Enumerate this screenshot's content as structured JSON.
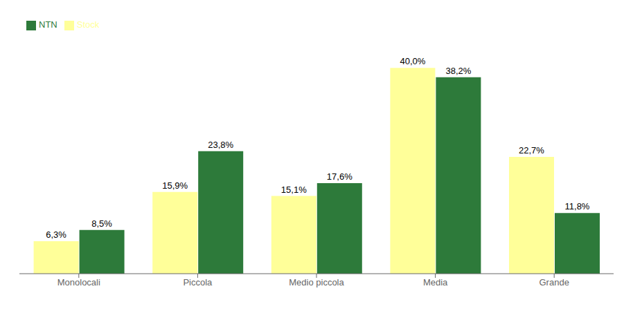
{
  "chart_data": {
    "type": "bar",
    "categories": [
      "Monolocali",
      "Piccola",
      "Medio piccola",
      "Media",
      "Grande"
    ],
    "series": [
      {
        "name": "Stock",
        "color": "#FFFF99",
        "values": [
          6.3,
          15.9,
          15.1,
          40.0,
          22.7
        ],
        "value_labels": [
          "6,3%",
          "15,9%",
          "15,1%",
          "40,0%",
          "22,7%"
        ]
      },
      {
        "name": "NTN",
        "color": "#2D7A3A",
        "values": [
          8.5,
          23.8,
          17.6,
          38.2,
          11.8
        ],
        "value_labels": [
          "8,5%",
          "23,8%",
          "17,6%",
          "38,2%",
          "11,8%"
        ]
      }
    ],
    "ylim": [
      0,
      46
    ],
    "data_labels": true,
    "legend": "upper left",
    "tick_labels": "x"
  }
}
